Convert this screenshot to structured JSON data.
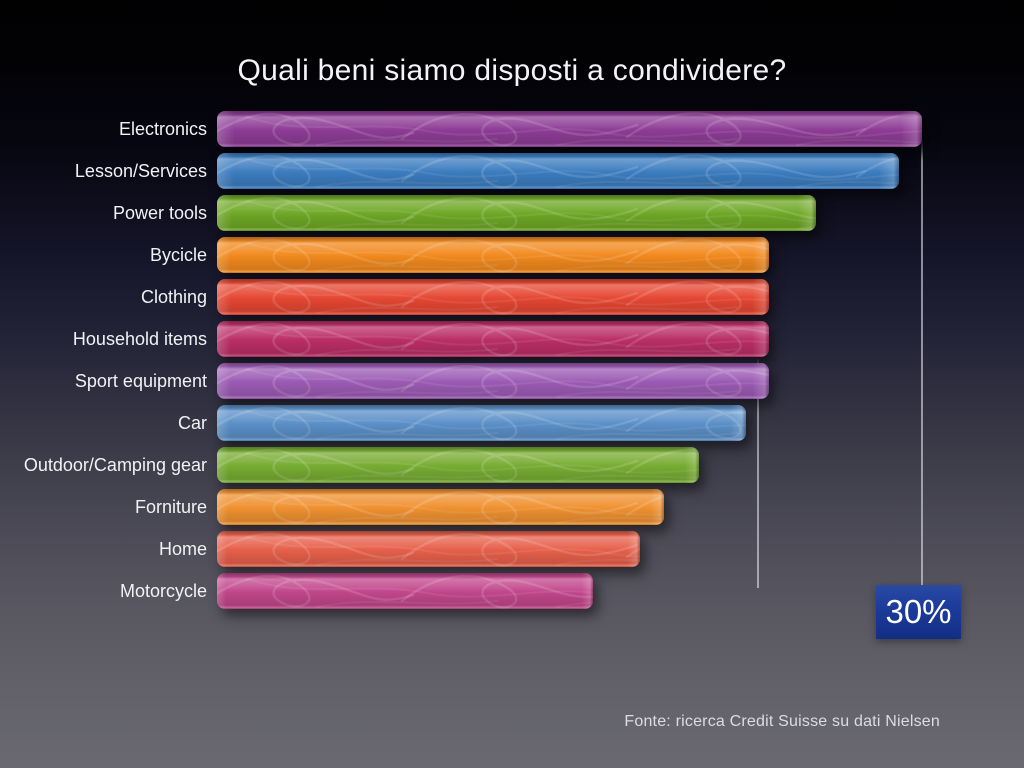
{
  "chart_data": {
    "type": "bar",
    "orientation": "horizontal",
    "title": "Quali beni siamo disposti a condividere?",
    "categories": [
      "Electronics",
      "Lesson/Services",
      "Power tools",
      "Bycicle",
      "Clothing",
      "Household items",
      "Sport equipment",
      "Car",
      "Outdoor/Camping gear",
      "Forniture",
      "Home",
      "Motorcycle"
    ],
    "values": [
      30,
      29,
      25.5,
      23.5,
      23.5,
      23.5,
      23.5,
      22.5,
      20.5,
      19,
      18,
      16
    ],
    "unit": "%",
    "value_axis": {
      "min": 0,
      "tick_labels_visible": false
    },
    "annotations": [
      {
        "text": "30%",
        "value": 30,
        "category": "Electronics",
        "style": "blue-box"
      }
    ],
    "droplines_at_values": [
      30,
      23
    ],
    "bar_colors": [
      "#8e3d96",
      "#3c7dc0",
      "#6fa826",
      "#f28a1e",
      "#e64833",
      "#bb2f67",
      "#9c5cb5",
      "#5b90c8",
      "#78ad33",
      "#f09231",
      "#e7604b",
      "#c2478d"
    ],
    "legend": false,
    "grid": false
  },
  "slide": {
    "source_note": "Fonte: ricerca Credit Suisse su dati Nielsen",
    "colors": {
      "callout_blue": "#1c3f9d",
      "dropline_gray": "#bcbcc6",
      "background_top": "#010102",
      "background_bottom": "#6a6972",
      "text_white": "#f4f4f6"
    }
  }
}
